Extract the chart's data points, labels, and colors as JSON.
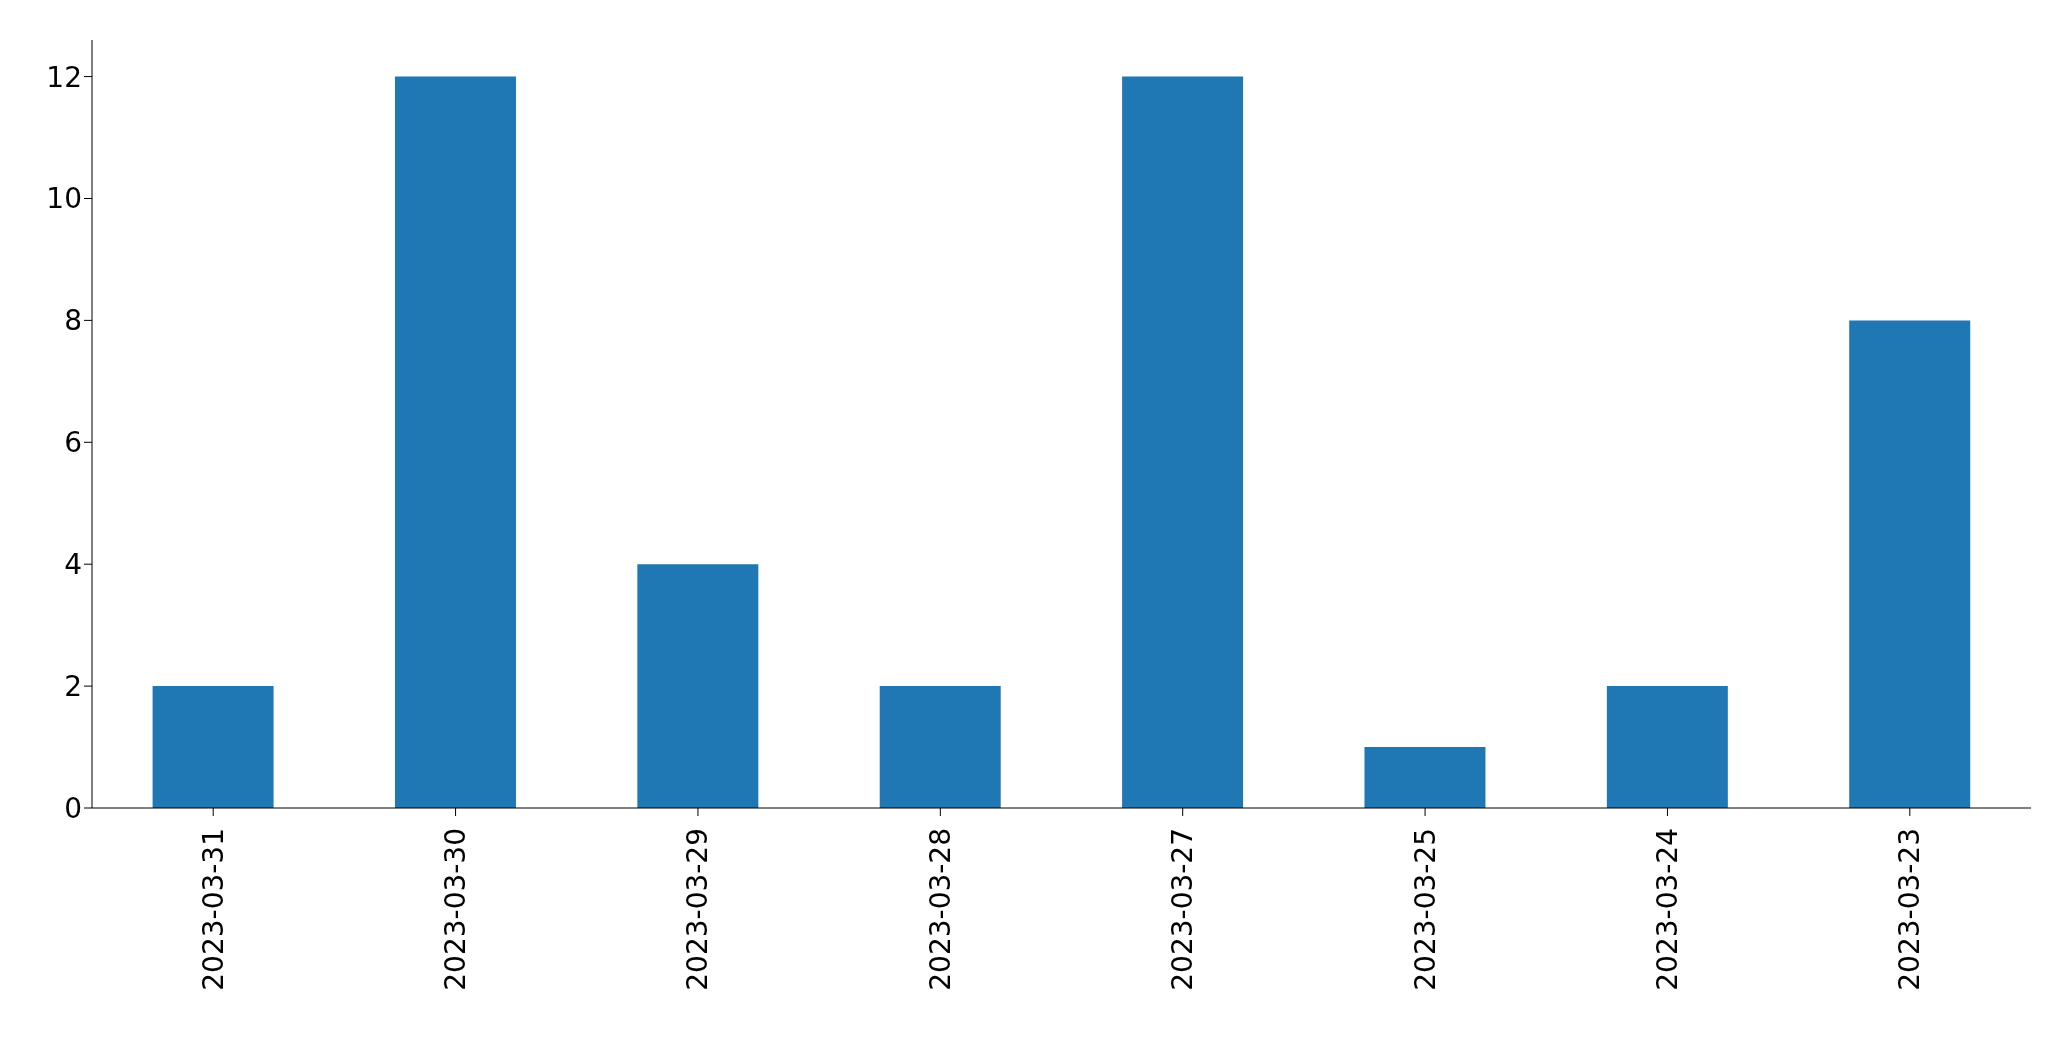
{
  "chart_data": {
    "type": "bar",
    "categories": [
      "2023-03-31",
      "2023-03-30",
      "2023-03-29",
      "2023-03-28",
      "2023-03-27",
      "2023-03-25",
      "2023-03-24",
      "2023-03-23"
    ],
    "values": [
      2,
      12,
      4,
      2,
      12,
      1,
      2,
      8
    ],
    "color": "#1f77b4",
    "ylim": [
      0,
      12.6
    ],
    "yticks": [
      0,
      2,
      4,
      6,
      8,
      10,
      12
    ],
    "grid": false,
    "legend": false
  }
}
